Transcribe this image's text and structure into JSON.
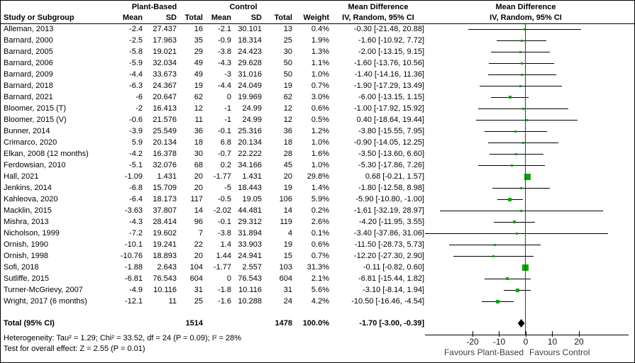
{
  "colors": {
    "marker_green": "#0CA50C",
    "diamond_black": "#000000",
    "axis_black": "#000000",
    "zero_line_gray": "#3c3c3c",
    "favours_text_gray": "#404040"
  },
  "chart_data": {
    "type": "forest",
    "group_headers": {
      "plant": "Plant-Based",
      "control": "Control",
      "md_left_line1": "Mean Difference",
      "md_left_line2": "IV, Random, 95% CI",
      "md_right_line1": "Mean Difference",
      "md_right_line2": "IV, Random, 95% CI"
    },
    "columns": {
      "study": "Study or Subgroup",
      "mean1": "Mean",
      "sd1": "SD",
      "total1": "Total",
      "mean2": "Mean",
      "sd2": "SD",
      "total2": "Total",
      "weight": "Weight"
    },
    "studies": [
      {
        "name": "Alleman, 2013",
        "pm": "-2.4",
        "psd": "27.437",
        "pt": "16",
        "cm": "-2.1",
        "csd": "30.101",
        "ct": "13",
        "wt": "0.4%",
        "md": "-0.30 [-21.48, 20.88]",
        "est": -0.3,
        "lo": -21.48,
        "hi": 20.88,
        "w": 0.4
      },
      {
        "name": "Barnard, 2000",
        "pm": "-2.5",
        "psd": "17.963",
        "pt": "35",
        "cm": "-0.9",
        "csd": "18.314",
        "ct": "25",
        "wt": "1.9%",
        "md": "-1.60 [-10.92, 7.72]",
        "est": -1.6,
        "lo": -10.92,
        "hi": 7.72,
        "w": 1.9
      },
      {
        "name": "Barnard, 2005",
        "pm": "-5.8",
        "psd": "19.021",
        "pt": "29",
        "cm": "-3.8",
        "csd": "24.423",
        "ct": "30",
        "wt": "1.3%",
        "md": "-2.00 [-13.15, 9.15]",
        "est": -2.0,
        "lo": -13.15,
        "hi": 9.15,
        "w": 1.3
      },
      {
        "name": "Barnard, 2006",
        "pm": "-5.9",
        "psd": "32.034",
        "pt": "49",
        "cm": "-4.3",
        "csd": "29.628",
        "ct": "50",
        "wt": "1.1%",
        "md": "-1.60 [-13.76, 10.56]",
        "est": -1.6,
        "lo": -13.76,
        "hi": 10.56,
        "w": 1.1
      },
      {
        "name": "Barnard, 2009",
        "pm": "-4.4",
        "psd": "33.673",
        "pt": "49",
        "cm": "-3",
        "csd": "31.016",
        "ct": "50",
        "wt": "1.0%",
        "md": "-1.40 [-14.16, 11.36]",
        "est": -1.4,
        "lo": -14.16,
        "hi": 11.36,
        "w": 1.0
      },
      {
        "name": "Barnard, 2018",
        "pm": "-6.3",
        "psd": "24.367",
        "pt": "19",
        "cm": "-4.4",
        "csd": "24.049",
        "ct": "19",
        "wt": "0.7%",
        "md": "-1.90 [-17.29, 13.49]",
        "est": -1.9,
        "lo": -17.29,
        "hi": 13.49,
        "w": 0.7
      },
      {
        "name": "Barnard, 2021",
        "pm": "-6",
        "psd": "20.647",
        "pt": "62",
        "cm": "0",
        "csd": "19.969",
        "ct": "62",
        "wt": "3.0%",
        "md": "-6.00 [-13.15, 1.15]",
        "est": -6.0,
        "lo": -13.15,
        "hi": 1.15,
        "w": 3.0
      },
      {
        "name": "Bloomer, 2015 (T)",
        "pm": "-2",
        "psd": "16.413",
        "pt": "12",
        "cm": "-1",
        "csd": "24.99",
        "ct": "12",
        "wt": "0.6%",
        "md": "-1.00 [-17.92, 15.92]",
        "est": -1.0,
        "lo": -17.92,
        "hi": 15.92,
        "w": 0.6
      },
      {
        "name": "Bloomer, 2015 (V)",
        "pm": "-0.6",
        "psd": "21.576",
        "pt": "11",
        "cm": "-1",
        "csd": "24.99",
        "ct": "12",
        "wt": "0.5%",
        "md": "0.40 [-18.64, 19.44]",
        "est": 0.4,
        "lo": -18.64,
        "hi": 19.44,
        "w": 0.5
      },
      {
        "name": "Bunner, 2014",
        "pm": "-3.9",
        "psd": "25.549",
        "pt": "36",
        "cm": "-0.1",
        "csd": "25.316",
        "ct": "36",
        "wt": "1.2%",
        "md": "-3.80 [-15.55, 7.95]",
        "est": -3.8,
        "lo": -15.55,
        "hi": 7.95,
        "w": 1.2
      },
      {
        "name": "Crimarco, 2020",
        "pm": "5.9",
        "psd": "20.134",
        "pt": "18",
        "cm": "6.8",
        "csd": "20.134",
        "ct": "18",
        "wt": "1.0%",
        "md": "-0.90 [-14.05, 12.25]",
        "est": -0.9,
        "lo": -14.05,
        "hi": 12.25,
        "w": 1.0
      },
      {
        "name": "Elkan, 2008 (12 months)",
        "pm": "-4.2",
        "psd": "16.378",
        "pt": "30",
        "cm": "-0.7",
        "csd": "22.222",
        "ct": "28",
        "wt": "1.6%",
        "md": "-3.50 [-13.60, 6.60]",
        "est": -3.5,
        "lo": -13.6,
        "hi": 6.6,
        "w": 1.6
      },
      {
        "name": "Ferdowsian, 2010",
        "pm": "-5.1",
        "psd": "32.076",
        "pt": "68",
        "cm": "0.2",
        "csd": "34.166",
        "ct": "45",
        "wt": "1.0%",
        "md": "-5.30 [-17.86, 7.26]",
        "est": -5.3,
        "lo": -17.86,
        "hi": 7.26,
        "w": 1.0
      },
      {
        "name": "Hall, 2021",
        "pm": "-1.09",
        "psd": "1.431",
        "pt": "20",
        "cm": "-1.77",
        "csd": "1.431",
        "ct": "20",
        "wt": "29.8%",
        "md": "0.68 [-0.21, 1.57]",
        "est": 0.68,
        "lo": -0.21,
        "hi": 1.57,
        "w": 29.8
      },
      {
        "name": "Jenkins, 2014",
        "pm": "-6.8",
        "psd": "15.709",
        "pt": "20",
        "cm": "-5",
        "csd": "18.443",
        "ct": "19",
        "wt": "1.4%",
        "md": "-1.80 [-12.58, 8.98]",
        "est": -1.8,
        "lo": -12.58,
        "hi": 8.98,
        "w": 1.4
      },
      {
        "name": "Kahleova, 2020",
        "pm": "-6.4",
        "psd": "18.173",
        "pt": "117",
        "cm": "-0.5",
        "csd": "19.05",
        "ct": "106",
        "wt": "5.9%",
        "md": "-5.90 [-10.80, -1.00]",
        "est": -5.9,
        "lo": -10.8,
        "hi": -1.0,
        "w": 5.9
      },
      {
        "name": "Macklin, 2015",
        "pm": "-3.63",
        "psd": "37.807",
        "pt": "14",
        "cm": "-2.02",
        "csd": "44.481",
        "ct": "14",
        "wt": "0.2%",
        "md": "-1.61 [-32.19, 28.97]",
        "est": -1.61,
        "lo": -32.19,
        "hi": 28.97,
        "w": 0.2
      },
      {
        "name": "Mishra, 2013",
        "pm": "-4.3",
        "psd": "28.414",
        "pt": "96",
        "cm": "-0.1",
        "csd": "29.312",
        "ct": "119",
        "wt": "2.6%",
        "md": "-4.20 [-11.95, 3.55]",
        "est": -4.2,
        "lo": -11.95,
        "hi": 3.55,
        "w": 2.6
      },
      {
        "name": "Nicholson, 1999",
        "pm": "-7.2",
        "psd": "19.602",
        "pt": "7",
        "cm": "-3.8",
        "csd": "31.894",
        "ct": "4",
        "wt": "0.1%",
        "md": "-3.40 [-37.86, 31.06]",
        "est": -3.4,
        "lo": -37.86,
        "hi": 31.06,
        "w": 0.1
      },
      {
        "name": "Ornish, 1990",
        "pm": "-10.1",
        "psd": "19.241",
        "pt": "22",
        "cm": "1.4",
        "csd": "33.903",
        "ct": "19",
        "wt": "0.6%",
        "md": "-11.50 [-28.73, 5.73]",
        "est": -11.5,
        "lo": -28.73,
        "hi": 5.73,
        "w": 0.6
      },
      {
        "name": "Ornish, 1998",
        "pm": "-10.76",
        "psd": "18.893",
        "pt": "20",
        "cm": "1.44",
        "csd": "24.941",
        "ct": "15",
        "wt": "0.7%",
        "md": "-12.20 [-27.30, 2.90]",
        "est": -12.2,
        "lo": -27.3,
        "hi": 2.9,
        "w": 0.7
      },
      {
        "name": "Sofi, 2018",
        "pm": "-1.88",
        "psd": "2.643",
        "pt": "104",
        "cm": "-1.77",
        "csd": "2.557",
        "ct": "103",
        "wt": "31.3%",
        "md": "-0.11 [-0.82, 0.60]",
        "est": -0.11,
        "lo": -0.82,
        "hi": 0.6,
        "w": 31.3
      },
      {
        "name": "Sutliffe, 2015",
        "pm": "-6.81",
        "psd": "76.543",
        "pt": "604",
        "cm": "0",
        "csd": "76.543",
        "ct": "604",
        "wt": "2.1%",
        "md": "-6.81 [-15.44, 1.82]",
        "est": -6.81,
        "lo": -15.44,
        "hi": 1.82,
        "w": 2.1
      },
      {
        "name": "Turner-McGrievy, 2007",
        "pm": "-4.9",
        "psd": "10.116",
        "pt": "31",
        "cm": "-1.8",
        "csd": "10.116",
        "ct": "31",
        "wt": "5.6%",
        "md": "-3.10 [-8.14, 1.94]",
        "est": -3.1,
        "lo": -8.14,
        "hi": 1.94,
        "w": 5.6
      },
      {
        "name": "Wright, 2017 (6 months)",
        "pm": "-12.1",
        "psd": "11",
        "pt": "25",
        "cm": "-1.6",
        "csd": "10.288",
        "ct": "24",
        "wt": "4.2%",
        "md": "-10.50 [-16.46, -4.54]",
        "est": -10.5,
        "lo": -16.46,
        "hi": -4.54,
        "w": 4.2
      }
    ],
    "total_row": {
      "label": "Total (95% CI)",
      "plant_total": "1514",
      "control_total": "1478",
      "weight": "100.0%",
      "md": "-1.70 [-3.00, -0.39]",
      "est": -1.7,
      "lo": -3.0,
      "hi": -0.39
    },
    "footnotes": {
      "heterogeneity": "Heterogeneity: Tau² = 1.29; Chi² = 33.52, df = 24 (P = 0.09); I² = 28%",
      "overall_effect": "Test for overall effect: Z = 2.55 (P = 0.01)"
    },
    "axis": {
      "tick_values": [
        -20,
        -10,
        0,
        10,
        20
      ],
      "tick_labels": [
        "-20",
        "-10",
        "0",
        "10",
        "20"
      ],
      "xlim": [
        -37.9,
        38.4
      ],
      "favours_left": "Favours Plant-Based",
      "favours_right": "Favours Control"
    }
  }
}
